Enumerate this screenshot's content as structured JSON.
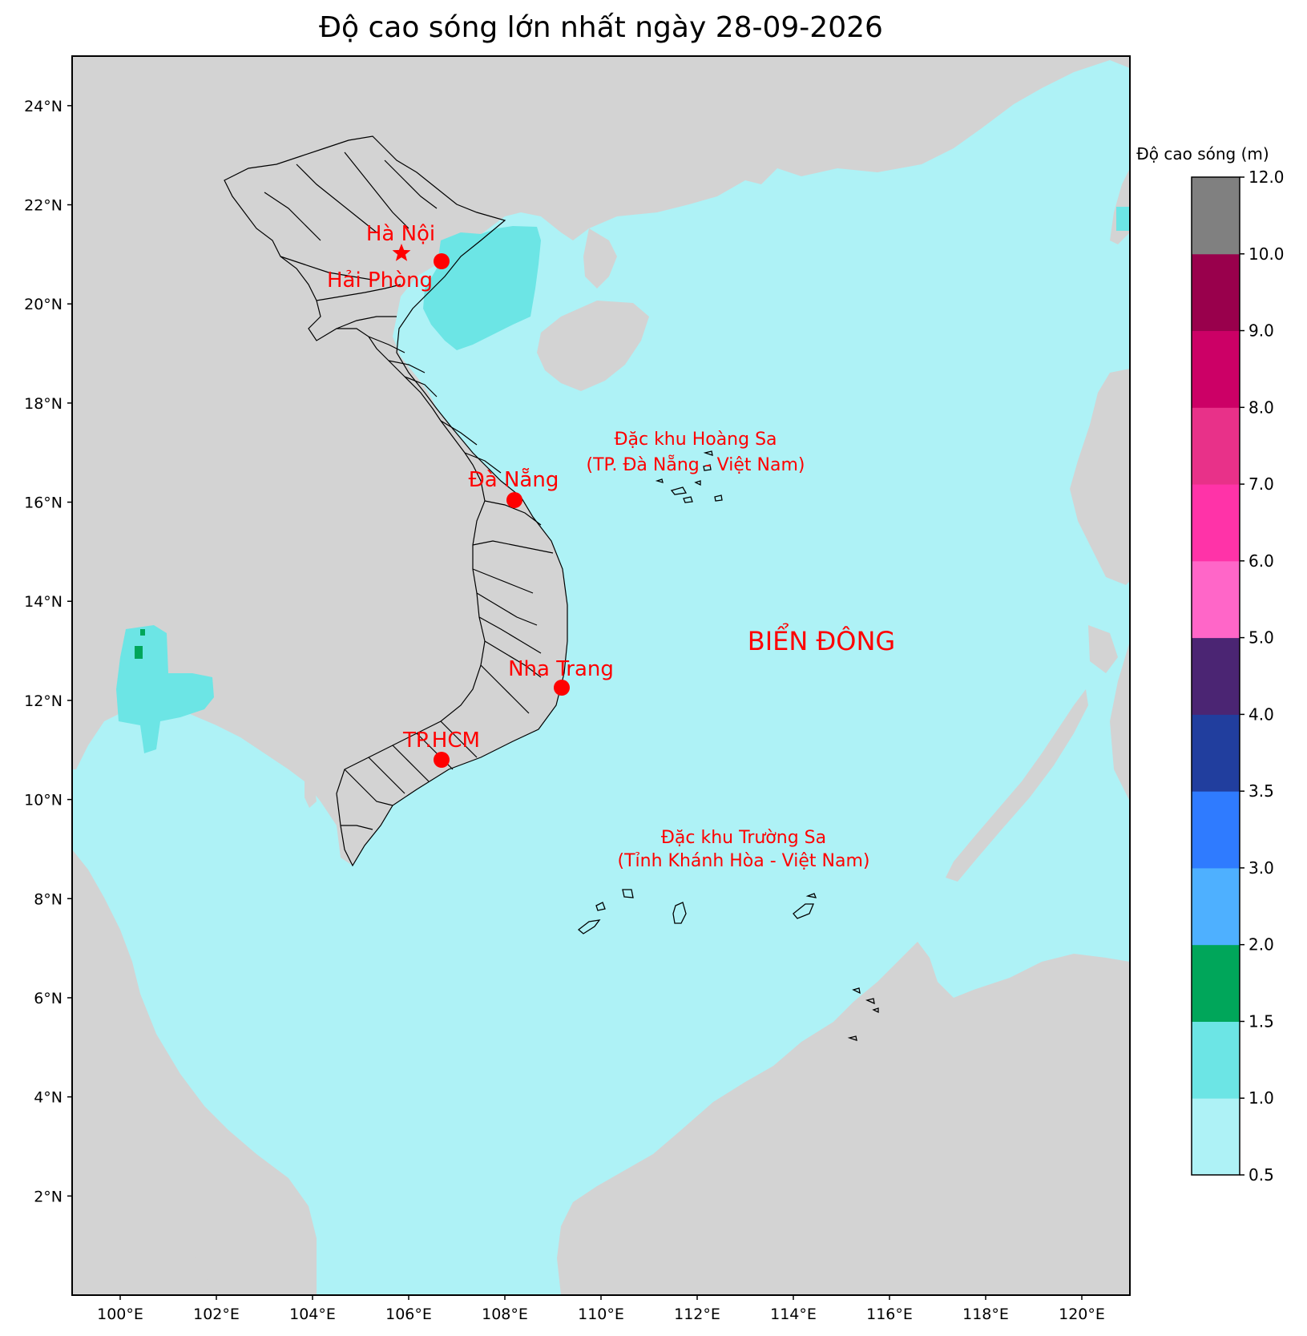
{
  "title": "Độ cao sóng lớn nhất ngày 28-09-2026",
  "axes": {
    "lon_ticks": [
      "100°E",
      "102°E",
      "104°E",
      "106°E",
      "108°E",
      "110°E",
      "112°E",
      "114°E",
      "116°E",
      "118°E",
      "120°E"
    ],
    "lat_ticks": [
      "24°N",
      "22°N",
      "20°N",
      "18°N",
      "16°N",
      "14°N",
      "12°N",
      "10°N",
      "8°N",
      "6°N",
      "4°N",
      "2°N"
    ]
  },
  "colors": {
    "sea_base": "#aef2f6",
    "land": "#d3d3d3",
    "marker": "#ff0000",
    "label": "#ff0000"
  },
  "cities": [
    {
      "name": "Hà Nội",
      "marker": "star"
    },
    {
      "name": "Hải Phòng",
      "marker": "dot"
    },
    {
      "name": "Đà Nẵng",
      "marker": "dot"
    },
    {
      "name": "Nha Trang",
      "marker": "dot"
    },
    {
      "name": "TP.HCM",
      "marker": "dot"
    }
  ],
  "annotations": {
    "hoang_sa_line1": "Đặc khu Hoàng Sa",
    "hoang_sa_line2": "(TP. Đà Nẵng - Việt Nam)",
    "truong_sa_line1": "Đặc khu Trường Sa",
    "truong_sa_line2": "(Tỉnh Khánh Hòa - Việt Nam)",
    "sea_name": "BIỂN ĐÔNG"
  },
  "colorbar": {
    "title": "Độ cao sóng (m)",
    "ticks": [
      "0.5",
      "1.0",
      "1.5",
      "2.0",
      "3.0",
      "3.5",
      "4.0",
      "5.0",
      "6.0",
      "7.0",
      "8.0",
      "9.0",
      "10.0",
      "12.0"
    ],
    "bins": [
      {
        "range": "0.5–1.0",
        "color": "#aef2f6"
      },
      {
        "range": "1.0–1.5",
        "color": "#6ce5e5"
      },
      {
        "range": "1.5–2.0",
        "color": "#00a65a"
      },
      {
        "range": "2.0–3.0",
        "color": "#4eb0ff"
      },
      {
        "range": "3.0–3.5",
        "color": "#2f7bff"
      },
      {
        "range": "3.5–4.0",
        "color": "#213e9e"
      },
      {
        "range": "4.0–5.0",
        "color": "#4b2573"
      },
      {
        "range": "5.0–6.0",
        "color": "#ff66c8"
      },
      {
        "range": "6.0–7.0",
        "color": "#ff33a8"
      },
      {
        "range": "7.0–8.0",
        "color": "#e83189"
      },
      {
        "range": "8.0–9.0",
        "color": "#cc0066"
      },
      {
        "range": "9.0–10.0",
        "color": "#99004c"
      },
      {
        "range": "10.0–12.0",
        "color": "#808080"
      }
    ]
  }
}
